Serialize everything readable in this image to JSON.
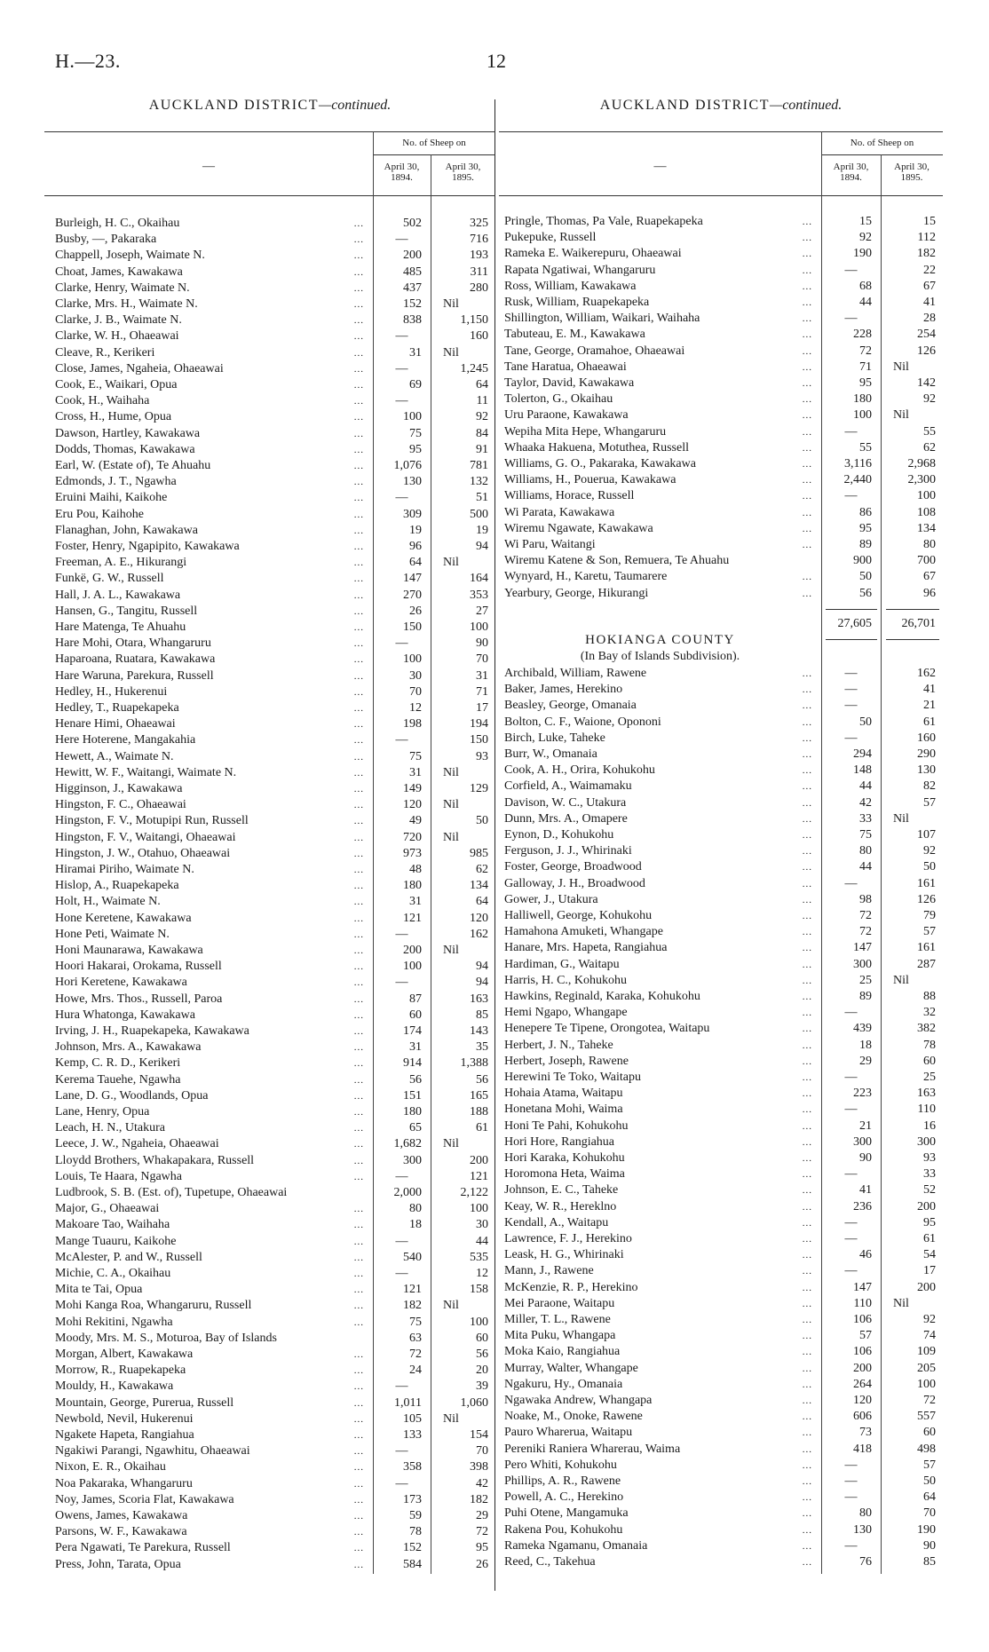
{
  "header": {
    "ref": "H.—23.",
    "page": "12"
  },
  "leader": "...",
  "left": {
    "title": "AUCKLAND DISTRICT",
    "title_suffix": "—continued.",
    "col_header": {
      "name": "—",
      "group": "No. of Sheep on",
      "col1_line1": "April 30,",
      "col1_line2": "1894.",
      "col2_line1": "April 30,",
      "col2_line2": "1895."
    },
    "rows": [
      [
        "Burleigh, H. C., Okaihau",
        "502",
        "325"
      ],
      [
        "Busby, —, Pakaraka",
        "—",
        "716"
      ],
      [
        "Chappell, Joseph, Waimate N.",
        "200",
        "193"
      ],
      [
        "Choat, James, Kawakawa",
        "485",
        "311"
      ],
      [
        "Clarke, Henry, Waimate N.",
        "437",
        "280"
      ],
      [
        "Clarke, Mrs. H., Waimate N.",
        "152",
        "Nil"
      ],
      [
        "Clarke, J. B., Waimate N.",
        "838",
        "1,150"
      ],
      [
        "Clarke, W. H., Ohaeawai",
        "—",
        "160"
      ],
      [
        "Cleave, R., Kerikeri",
        "31",
        "Nil"
      ],
      [
        "Close, James, Ngaheia, Ohaeawai",
        "—",
        "1,245"
      ],
      [
        "Cook, E., Waikari, Opua",
        "69",
        "64"
      ],
      [
        "Cook, H., Waihaha",
        "—",
        "11"
      ],
      [
        "Cross, H., Hume, Opua",
        "100",
        "92"
      ],
      [
        "Dawson, Hartley, Kawakawa",
        "75",
        "84"
      ],
      [
        "Dodds, Thomas, Kawakawa",
        "95",
        "91"
      ],
      [
        "Earl, W. (Estate of), Te Ahuahu",
        "1,076",
        "781"
      ],
      [
        "Edmonds, J. T., Ngawha",
        "130",
        "132"
      ],
      [
        "Eruini Maihi, Kaikohe",
        "—",
        "51"
      ],
      [
        "Eru Pou, Kaihohe",
        "309",
        "500"
      ],
      [
        "Flanaghan, John, Kawakawa",
        "19",
        "19"
      ],
      [
        "Foster, Henry, Ngapipito, Kawakawa",
        "96",
        "94"
      ],
      [
        "Freeman, A. E., Hikurangi",
        "64",
        "Nil"
      ],
      [
        "Funkë, G. W., Russell",
        "147",
        "164"
      ],
      [
        "Hall, J. A. L., Kawakawa",
        "270",
        "353"
      ],
      [
        "Hansen, G., Tangitu, Russell",
        "26",
        "27"
      ],
      [
        "Hare Matenga, Te Ahuahu",
        "150",
        "100"
      ],
      [
        "Hare Mohi, Otara, Whangaruru",
        "—",
        "90"
      ],
      [
        "Haparoana, Ruatara, Kawakawa",
        "100",
        "70"
      ],
      [
        "Hare Waruna, Parekura, Russell",
        "30",
        "31"
      ],
      [
        "Hedley, H., Hukerenui",
        "70",
        "71"
      ],
      [
        "Hedley, T., Ruapekapeka",
        "12",
        "17"
      ],
      [
        "Henare Himi, Ohaeawai",
        "198",
        "194"
      ],
      [
        "Here Hoterene, Mangakahia",
        "—",
        "150"
      ],
      [
        "Hewett, A., Waimate N.",
        "75",
        "93"
      ],
      [
        "Hewitt, W. F., Waitangi, Waimate N.",
        "31",
        "Nil"
      ],
      [
        "Higginson, J., Kawakawa",
        "149",
        "129"
      ],
      [
        "Hingston, F. C., Ohaeawai",
        "120",
        "Nil"
      ],
      [
        "Hingston, F. V., Motupipi Run, Russell",
        "49",
        "50"
      ],
      [
        "Hingston, F. V., Waitangi, Ohaeawai",
        "720",
        "Nil"
      ],
      [
        "Hingston, J. W., Otahuo, Ohaeawai",
        "973",
        "985"
      ],
      [
        "Hiramai Piriho, Waimate N.",
        "48",
        "62"
      ],
      [
        "Hislop, A., Ruapekapeka",
        "180",
        "134"
      ],
      [
        "Holt, H., Waimate N.",
        "31",
        "64"
      ],
      [
        "Hone Keretene, Kawakawa",
        "121",
        "120"
      ],
      [
        "Hone Peti, Waimate N.",
        "—",
        "162"
      ],
      [
        "Honi Maunarawa, Kawakawa",
        "200",
        "Nil"
      ],
      [
        "Hoori Hakarai, Orokama, Russell",
        "100",
        "94"
      ],
      [
        "Hori Keretene, Kawakawa",
        "—",
        "94"
      ],
      [
        "Howe, Mrs. Thos., Russell, Paroa",
        "87",
        "163"
      ],
      [
        "Hura Whatonga, Kawakawa",
        "60",
        "85"
      ],
      [
        "Irving, J. H., Ruapekapeka, Kawakawa",
        "174",
        "143"
      ],
      [
        "Johnson, Mrs. A., Kawakawa",
        "31",
        "35"
      ],
      [
        "Kemp, C. R. D., Kerikeri",
        "914",
        "1,388"
      ],
      [
        "Kerema Tauehe, Ngawha",
        "56",
        "56"
      ],
      [
        "Lane, D. G., Woodlands, Opua",
        "151",
        "165"
      ],
      [
        "Lane, Henry, Opua",
        "180",
        "188"
      ],
      [
        "Leach, H. N., Utakura",
        "65",
        "61"
      ],
      [
        "Leece, J. W., Ngaheia, Ohaeawai",
        "1,682",
        "Nil"
      ],
      [
        "Lloydd Brothers, Whakapakara, Russell",
        "300",
        "200"
      ],
      [
        "Louis, Te Haara, Ngawha",
        "—",
        "121"
      ],
      [
        "Ludbrook, S. B. (Est. of), Tupetupe, Ohaeawai",
        "2,000",
        "2,122",
        false
      ],
      [
        "Major, G., Ohaeawai",
        "80",
        "100"
      ],
      [
        "Makoare Tao, Waihaha",
        "18",
        "30"
      ],
      [
        "Mange Tuauru, Kaikohe",
        "—",
        "44"
      ],
      [
        "McAlester, P. and W., Russell",
        "540",
        "535"
      ],
      [
        "Michie, C. A., Okaihau",
        "—",
        "12"
      ],
      [
        "Mita te Tai, Opua",
        "121",
        "158"
      ],
      [
        "Mohi Kanga Roa, Whangaruru, Russell",
        "182",
        "Nil"
      ],
      [
        "Mohi Rekitini, Ngawha",
        "75",
        "100"
      ],
      [
        "Moody, Mrs. M. S., Moturoa, Bay of Islands",
        "63",
        "60",
        false
      ],
      [
        "Morgan, Albert, Kawakawa",
        "72",
        "56"
      ],
      [
        "Morrow, R., Ruapekapeka",
        "24",
        "20"
      ],
      [
        "Mouldy, H., Kawakawa",
        "—",
        "39"
      ],
      [
        "Mountain, George, Purerua, Russell",
        "1,011",
        "1,060"
      ],
      [
        "Newbold, Nevil, Hukerenui",
        "105",
        "Nil"
      ],
      [
        "Ngakete Hapeta, Rangiahua",
        "133",
        "154"
      ],
      [
        "Ngakiwi Parangi, Ngawhitu, Ohaeawai",
        "—",
        "70"
      ],
      [
        "Nixon, E. R., Okaihau",
        "358",
        "398"
      ],
      [
        "Noa Pakaraka, Whangaruru",
        "—",
        "42"
      ],
      [
        "Noy, James, Scoria Flat, Kawakawa",
        "173",
        "182"
      ],
      [
        "Owens, James, Kawakawa",
        "59",
        "29"
      ],
      [
        "Parsons, W. F., Kawakawa",
        "78",
        "72"
      ],
      [
        "Pera Ngawati, Te Parekura, Russell",
        "152",
        "95"
      ],
      [
        "Press, John, Tarata, Opua",
        "584",
        "26"
      ]
    ]
  },
  "right": {
    "title": "AUCKLAND DISTRICT",
    "title_suffix": "—continued.",
    "col_header": {
      "name": "—",
      "group": "No. of Sheep on",
      "col1_line1": "April 30,",
      "col1_line2": "1894.",
      "col2_line1": "April 30,",
      "col2_line2": "1895."
    },
    "rows": [
      [
        "Pringle, Thomas, Pa Vale, Ruapekapeka",
        "15",
        "15"
      ],
      [
        "Pukepuke, Russell",
        "92",
        "112"
      ],
      [
        "Rameka E. Waikerepuru, Ohaeawai",
        "190",
        "182"
      ],
      [
        "Rapata Ngatiwai, Whangaruru",
        "—",
        "22"
      ],
      [
        "Ross, William, Kawakawa",
        "68",
        "67"
      ],
      [
        "Rusk, William, Ruapekapeka",
        "44",
        "41"
      ],
      [
        "Shillington, William, Waikari, Waihaha",
        "—",
        "28"
      ],
      [
        "Tabuteau, E. M., Kawakawa",
        "228",
        "254"
      ],
      [
        "Tane, George, Oramahoe, Ohaeawai",
        "72",
        "126"
      ],
      [
        "Tane Haratua, Ohaeawai",
        "71",
        "Nil"
      ],
      [
        "Taylor, David, Kawakawa",
        "95",
        "142"
      ],
      [
        "Tolerton, G., Okaihau",
        "180",
        "92"
      ],
      [
        "Uru Paraone, Kawakawa",
        "100",
        "Nil"
      ],
      [
        "Wepiha Mita Hepe, Whangaruru",
        "—",
        "55"
      ],
      [
        "Whaaka Hakuena, Motuthea, Russell",
        "55",
        "62"
      ],
      [
        "Williams, G. O., Pakaraka, Kawakawa",
        "3,116",
        "2,968"
      ],
      [
        "Williams, H., Pouerua, Kawakawa",
        "2,440",
        "2,300"
      ],
      [
        "Williams, Horace, Russell",
        "—",
        "100"
      ],
      [
        "Wi Parata, Kawakawa",
        "86",
        "108"
      ],
      [
        "Wiremu Ngawate, Kawakawa",
        "95",
        "134"
      ],
      [
        "Wi Paru, Waitangi",
        "89",
        "80"
      ],
      [
        "Wiremu Katene & Son, Remuera, Te Ahuahu",
        "900",
        "700",
        false
      ],
      [
        "Wynyard, H., Karetu, Taumarere",
        "50",
        "67"
      ],
      [
        "Yearbury, George, Hikurangi",
        "56",
        "96"
      ]
    ],
    "total": {
      "col1": "27,605",
      "col2": "26,701"
    },
    "section": {
      "title": "HOKIANGA COUNTY",
      "subtitle": "(In Bay of Islands Subdivision)."
    },
    "section_rows": [
      [
        "Archibald, William, Rawene",
        "—",
        "162"
      ],
      [
        "Baker, James, Herekino",
        "—",
        "41"
      ],
      [
        "Beasley, George, Omanaia",
        "—",
        "21"
      ],
      [
        "Bolton, C. F., Waione, Opononi",
        "50",
        "61"
      ],
      [
        "Birch, Luke, Taheke",
        "—",
        "160"
      ],
      [
        "Burr, W., Omanaia",
        "294",
        "290"
      ],
      [
        "Cook, A. H., Orira, Kohukohu",
        "148",
        "130"
      ],
      [
        "Corfield, A., Waimamaku",
        "44",
        "82"
      ],
      [
        "Davison, W. C., Utakura",
        "42",
        "57"
      ],
      [
        "Dunn, Mrs. A., Omapere",
        "33",
        "Nil"
      ],
      [
        "Eynon, D., Kohukohu",
        "75",
        "107"
      ],
      [
        "Ferguson, J. J., Whirinaki",
        "80",
        "92"
      ],
      [
        "Foster, George, Broadwood",
        "44",
        "50"
      ],
      [
        "Galloway, J. H., Broadwood",
        "—",
        "161"
      ],
      [
        "Gower, J., Utakura",
        "98",
        "126"
      ],
      [
        "Halliwell, George, Kohukohu",
        "72",
        "79"
      ],
      [
        "Hamahona Amuketi, Whangape",
        "72",
        "57"
      ],
      [
        "Hanare, Mrs. Hapeta, Rangiahua",
        "147",
        "161"
      ],
      [
        "Hardiman, G., Waitapu",
        "300",
        "287"
      ],
      [
        "Harris, H. C., Kohukohu",
        "25",
        "Nil"
      ],
      [
        "Hawkins, Reginald, Karaka, Kohukohu",
        "89",
        "88"
      ],
      [
        "Hemi Ngapo, Whangape",
        "—",
        "32"
      ],
      [
        "Henepere Te Tipene, Orongotea, Waitapu",
        "439",
        "382"
      ],
      [
        "Herbert, J. N., Taheke",
        "18",
        "78"
      ],
      [
        "Herbert, Joseph, Rawene",
        "29",
        "60"
      ],
      [
        "Herewini Te Toko, Waitapu",
        "—",
        "25"
      ],
      [
        "Hohaia Atama, Waitapu",
        "223",
        "163"
      ],
      [
        "Honetana Mohi, Waima",
        "—",
        "110"
      ],
      [
        "Honi Te Pahi, Kohukohu",
        "21",
        "16"
      ],
      [
        "Hori Hore, Rangiahua",
        "300",
        "300"
      ],
      [
        "Hori Karaka, Kohukohu",
        "90",
        "93"
      ],
      [
        "Horomona Heta, Waima",
        "—",
        "33"
      ],
      [
        "Johnson, E. C., Taheke",
        "41",
        "52"
      ],
      [
        "Keay, W. R., Hereklno",
        "236",
        "200"
      ],
      [
        "Kendall, A., Waitapu",
        "—",
        "95"
      ],
      [
        "Lawrence, F. J., Herekino",
        "—",
        "61"
      ],
      [
        "Leask, H. G., Whirinaki",
        "46",
        "54"
      ],
      [
        "Mann, J., Rawene",
        "—",
        "17"
      ],
      [
        "McKenzie, R. P., Herekino",
        "147",
        "200"
      ],
      [
        "Mei Paraone, Waitapu",
        "110",
        "Nil"
      ],
      [
        "Miller, T. L., Rawene",
        "106",
        "92"
      ],
      [
        "Mita Puku, Whangapa",
        "57",
        "74"
      ],
      [
        "Moka Kaio, Rangiahua",
        "106",
        "109"
      ],
      [
        "Murray, Walter, Whangape",
        "200",
        "205"
      ],
      [
        "Ngakuru, Hy., Omanaia",
        "264",
        "100"
      ],
      [
        "Ngawaka Andrew, Whangapa",
        "120",
        "72"
      ],
      [
        "Noake, M., Onoke, Rawene",
        "606",
        "557"
      ],
      [
        "Pauro Wharerua, Waitapu",
        "73",
        "60"
      ],
      [
        "Pereniki Raniera Wharerau, Waima",
        "418",
        "498"
      ],
      [
        "Pero Whiti, Kohukohu",
        "—",
        "57"
      ],
      [
        "Phillips, A. R., Rawene",
        "—",
        "50"
      ],
      [
        "Powell, A. C., Herekino",
        "—",
        "64"
      ],
      [
        "Puhi Otene, Mangamuka",
        "80",
        "70"
      ],
      [
        "Rakena Pou, Kohukohu",
        "130",
        "190"
      ],
      [
        "Rameka Ngamanu, Omanaia",
        "—",
        "90"
      ],
      [
        "Reed, C., Takehua",
        "76",
        "85"
      ]
    ]
  }
}
